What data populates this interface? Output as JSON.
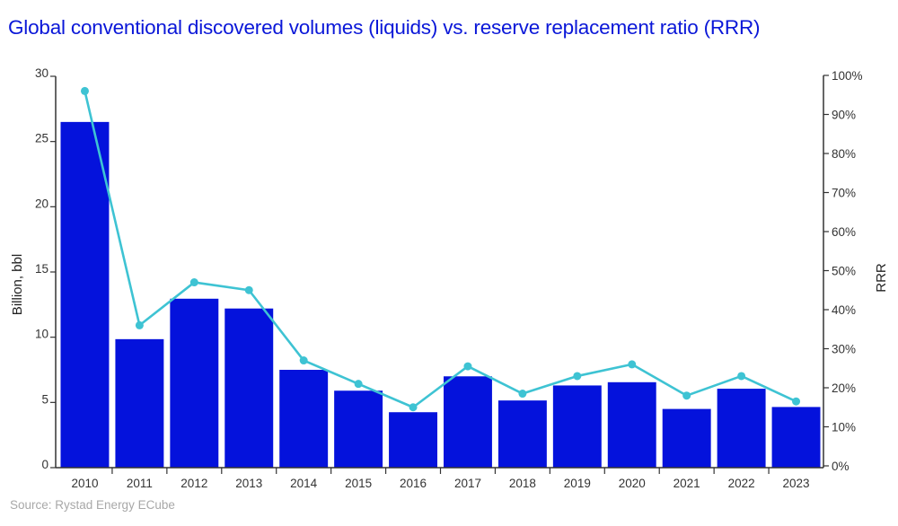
{
  "title": "Global conventional discovered volumes (liquids) vs. reserve replacement ratio (RRR)",
  "source": "Source: Rystad Energy ECube",
  "colors": {
    "bar": "#0412dc",
    "line": "#3ec3d3",
    "title": "#0a17d8",
    "axis": "#333333"
  },
  "chart_data": {
    "type": "bar+line",
    "title": "Global conventional discovered volumes (liquids) vs. reserve replacement ratio (RRR)",
    "categories": [
      "2010",
      "2011",
      "2012",
      "2013",
      "2014",
      "2015",
      "2016",
      "2017",
      "2018",
      "2019",
      "2020",
      "2021",
      "2022",
      "2023"
    ],
    "series": [
      {
        "name": "Discovered volumes (liquids)",
        "type": "bar",
        "axis": "left",
        "unit": "Billion, bbl",
        "values": [
          26.5,
          9.85,
          12.95,
          12.2,
          7.5,
          5.9,
          4.25,
          7.0,
          5.15,
          6.3,
          6.55,
          4.5,
          6.05,
          4.65
        ]
      },
      {
        "name": "RRR",
        "type": "line",
        "axis": "right",
        "unit": "%",
        "values": [
          96,
          36,
          47,
          45,
          27,
          21,
          15,
          25.5,
          18.5,
          23,
          26,
          18,
          23,
          16.5
        ]
      }
    ],
    "ylabel": "Billion, bbl",
    "ylim": [
      0,
      30
    ],
    "yticks": [
      "0",
      "5",
      "10",
      "15",
      "20",
      "25",
      "30"
    ],
    "y2label": "RRR",
    "y2lim": [
      0,
      100
    ],
    "y2ticks": [
      "0%",
      "10%",
      "20%",
      "30%",
      "40%",
      "50%",
      "60%",
      "70%",
      "80%",
      "90%",
      "100%"
    ],
    "xlabel": "",
    "grid": false,
    "legend": "none"
  }
}
